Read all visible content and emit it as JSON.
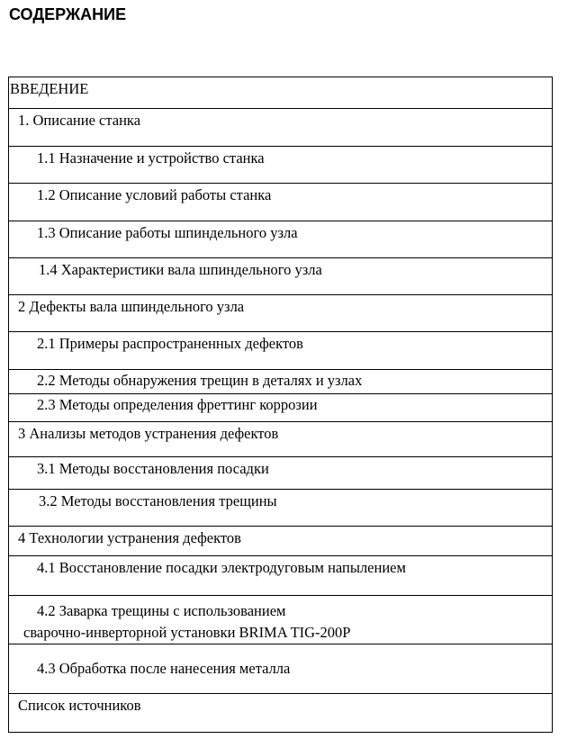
{
  "title": "СОДЕРЖАНИЕ",
  "toc": [
    "ВВЕДЕНИЕ",
    "1.  Описание станка",
    "1.1 Назначение и устройство станка",
    "1.2  Описание условий работы станка",
    "1.3 Описание работы шпиндельного узла",
    "1.4 Характеристики вала шпиндельного узла",
    "2  Дефекты вала шпиндельного узла",
    "2.1 Примеры  распространенных дефектов",
    "2.2 Методы обнаружения трещин в деталях и узлах",
    "2.3  Методы определения фреттинг коррозии",
    "3 Анализы методов устранения дефектов",
    "3.1 Методы восстановления  посадки",
    "3.2 Методы восстановления  трещины",
    "4 Технологии устранения дефектов",
    "4.1 Восстановление посадки электродуговым напылением",
    "4.2  Заварка трещины с использованием",
    "сварочно-инверторной установки BRIMA TIG-200P",
    "4.3 Обработка после нанесения металла",
    "Список источников"
  ]
}
